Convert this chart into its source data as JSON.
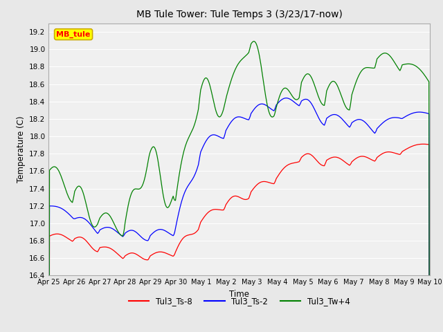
{
  "title": "MB Tule Tower: Tule Temps 3 (3/23/17-now)",
  "xlabel": "Time",
  "ylabel": "Temperature (C)",
  "ylim": [
    16.4,
    19.3
  ],
  "fig_facecolor": "#e8e8e8",
  "ax_facecolor": "#f0f0f0",
  "series": {
    "Tul3_Ts-8": {
      "color": "red"
    },
    "Tul3_Ts-2": {
      "color": "blue"
    },
    "Tul3_Tw+4": {
      "color": "green"
    }
  },
  "legend_box": {
    "text": "MB_tule",
    "facecolor": "yellow",
    "edgecolor": "#ccaa00",
    "textcolor": "red"
  },
  "x_tick_labels": [
    "Apr 25",
    "Apr 26",
    "Apr 27",
    "Apr 28",
    "Apr 29",
    "Apr 30",
    "May 1",
    "May 2",
    "May 3",
    "May 4",
    "May 5",
    "May 6",
    "May 7",
    "May 8",
    "May 9",
    "May 10"
  ],
  "yticks": [
    16.4,
    16.6,
    16.8,
    17.0,
    17.2,
    17.4,
    17.6,
    17.8,
    18.0,
    18.2,
    18.4,
    18.6,
    18.8,
    19.0,
    19.2
  ],
  "n_points": 500
}
